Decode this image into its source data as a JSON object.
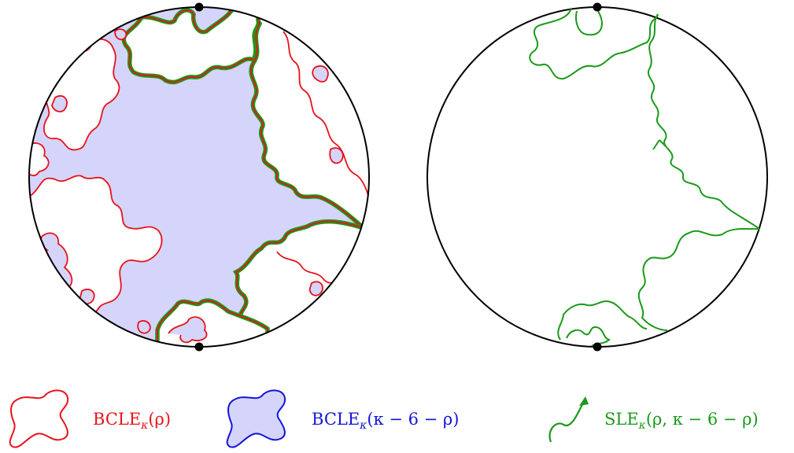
{
  "colors": {
    "red": "#e8121b",
    "blue": "#1414d8",
    "green": "#1a9a1a",
    "fill": "#d5d4fa",
    "circle": "#000000"
  },
  "legend": {
    "red_main": "BCLE",
    "red_sub": "κ",
    "red_args": "(ρ)",
    "blue_main": "BCLE",
    "blue_sub": "κ",
    "blue_args": "(κ − 6 − ρ)",
    "green_main": "SLE",
    "green_sub": "κ",
    "green_args": "(ρ, κ − 6 − ρ)"
  }
}
